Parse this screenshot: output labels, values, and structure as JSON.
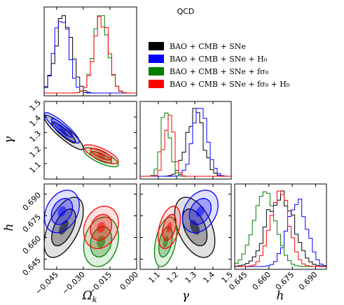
{
  "title": "QCD",
  "legend": [
    {
      "label": "BAO + CMB + SNe",
      "color": "#000000"
    },
    {
      "label": "BAO + CMB + SNe + H₀",
      "color": "#0000ff"
    },
    {
      "label": "BAO + CMB + SNe + fσ₈",
      "color": "#008000"
    },
    {
      "label": "BAO + CMB + SNe + fσ₈ + H₀",
      "color": "#ff0000"
    }
  ],
  "axis_labels": {
    "omega_k": "Ωk",
    "gamma": "γ",
    "h": "h"
  },
  "chart_data": {
    "type": "corner",
    "title": "QCD",
    "parameters": [
      "Ωk",
      "γ",
      "h"
    ],
    "ranges": {
      "omega_k": [
        -0.052,
        0.0
      ],
      "gamma": [
        1.0,
        1.5
      ],
      "h": [
        0.638,
        0.697
      ]
    },
    "ticks": {
      "omega_k": [
        -0.045,
        -0.03,
        -0.015,
        0.0
      ],
      "omega_k_labels": [
        "−0.045",
        "−0.030",
        "−0.015",
        "0.000"
      ],
      "gamma": [
        1.1,
        1.2,
        1.3,
        1.4,
        1.5
      ],
      "gamma_labels": [
        "1.1",
        "1.2",
        "1.3",
        "1.4",
        "1.5"
      ],
      "h": [
        0.645,
        0.66,
        0.675,
        0.69
      ],
      "h_labels": [
        "0.645",
        "0.660",
        "0.675",
        "0.690"
      ]
    },
    "series": [
      {
        "name": "BAO + CMB + SNe",
        "color": "#000000",
        "omega_k": {
          "mean": -0.041,
          "sd": 0.0045
        },
        "gamma": {
          "mean": 1.3,
          "sd": 0.045
        },
        "h": {
          "mean": 0.667,
          "sd": 0.0085
        },
        "corr_omega_gamma": -0.9,
        "corr_omega_h": 0.55,
        "corr_gamma_h": -0.45
      },
      {
        "name": "BAO + CMB + SNe + H₀",
        "color": "#0000ff",
        "omega_k": {
          "mean": -0.042,
          "sd": 0.004
        },
        "gamma": {
          "mean": 1.33,
          "sd": 0.04
        },
        "h": {
          "mean": 0.678,
          "sd": 0.006
        },
        "corr_omega_gamma": -0.9,
        "corr_omega_h": 0.3,
        "corr_gamma_h": 0.3
      },
      {
        "name": "BAO + CMB + SNe + fσ₈",
        "color": "#008000",
        "omega_k": {
          "mean": -0.02,
          "sd": 0.004
        },
        "gamma": {
          "mean": 1.14,
          "sd": 0.025
        },
        "h": {
          "mean": 0.657,
          "sd": 0.007
        },
        "corr_omega_gamma": -0.75,
        "corr_omega_h": 0.2,
        "corr_gamma_h": 0.4
      },
      {
        "name": "BAO + CMB + SNe + fσ₈ + H₀",
        "color": "#ff0000",
        "omega_k": {
          "mean": -0.02,
          "sd": 0.004
        },
        "gamma": {
          "mean": 1.16,
          "sd": 0.025
        },
        "h": {
          "mean": 0.667,
          "sd": 0.006
        },
        "corr_omega_gamma": -0.75,
        "corr_omega_h": 0.2,
        "corr_gamma_h": 0.4
      }
    ]
  }
}
